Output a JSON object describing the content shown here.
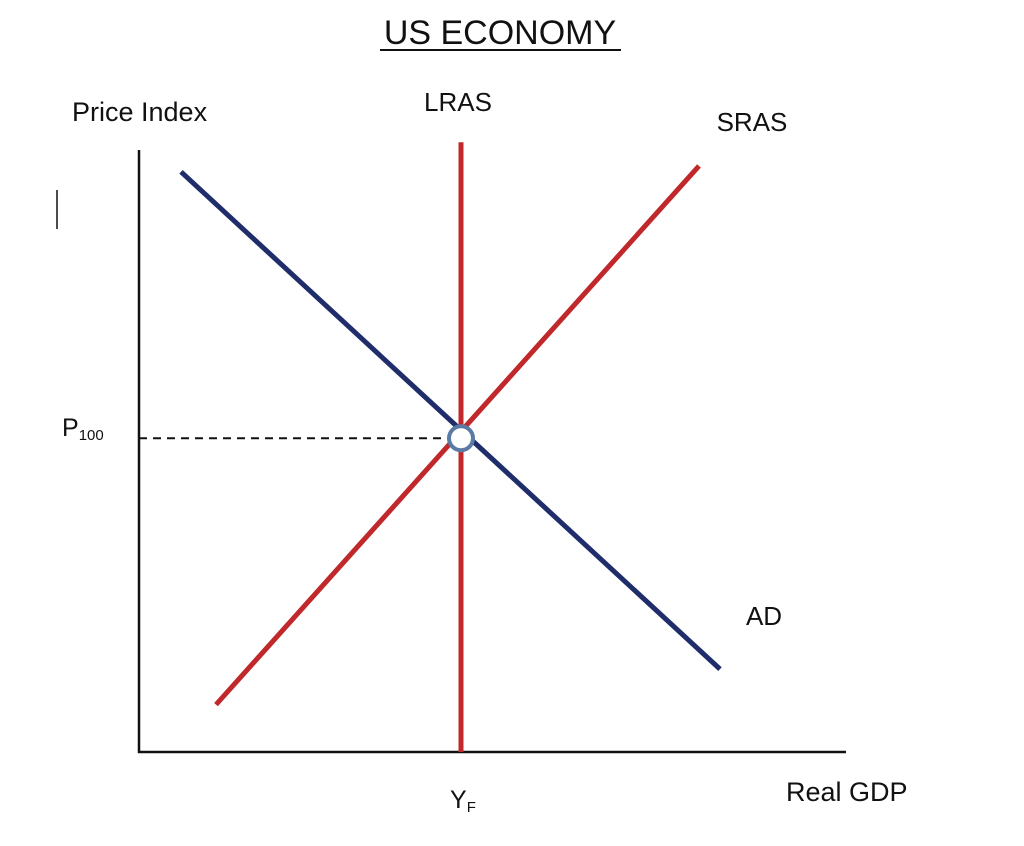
{
  "chart_data": {
    "type": "line",
    "title": "US ECONOMY",
    "ylabel": "Price Index",
    "xlabel": "Real GDP",
    "xlim": [
      0,
      10
    ],
    "ylim": [
      0,
      10
    ],
    "grid": false,
    "legend": "none",
    "series": [
      {
        "name": "AD",
        "color": "#1f2d6b",
        "points": [
          {
            "x": 0.6,
            "y": 9.8
          },
          {
            "x": 8.3,
            "y": 1.4
          }
        ]
      },
      {
        "name": "SRAS",
        "color": "#c0282c",
        "points": [
          {
            "x": 1.1,
            "y": 0.8
          },
          {
            "x": 8.0,
            "y": 9.9
          }
        ]
      },
      {
        "name": "LRAS",
        "color": "#c0282c",
        "points": [
          {
            "x": 4.6,
            "y": 0
          },
          {
            "x": 4.6,
            "y": 10.3
          }
        ]
      }
    ],
    "equilibrium": {
      "x": 4.6,
      "y": 5.3,
      "color": "#5b7aa6"
    },
    "y_tick": {
      "value": 5.3,
      "label": "P",
      "subscript": "100"
    },
    "x_tick": {
      "value": 4.6,
      "label": "Y",
      "subscript": "F"
    }
  }
}
